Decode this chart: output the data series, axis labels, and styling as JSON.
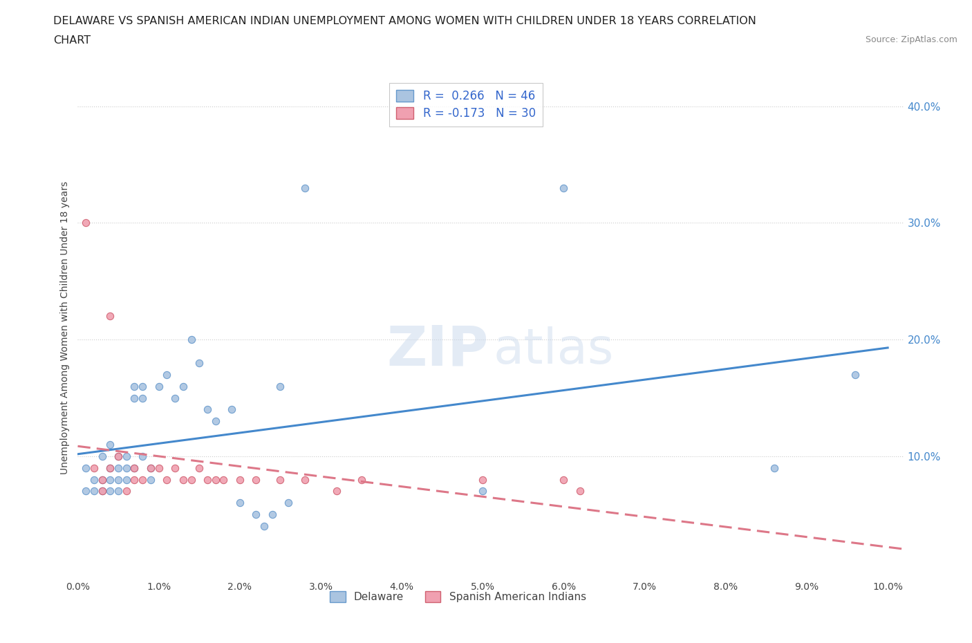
{
  "title_line1": "DELAWARE VS SPANISH AMERICAN INDIAN UNEMPLOYMENT AMONG WOMEN WITH CHILDREN UNDER 18 YEARS CORRELATION",
  "title_line2": "CHART",
  "source_text": "Source: ZipAtlas.com",
  "ylabel": "Unemployment Among Women with Children Under 18 years",
  "xlim": [
    0.0,
    0.102
  ],
  "ylim": [
    -0.005,
    0.425
  ],
  "xtick_vals": [
    0.0,
    0.01,
    0.02,
    0.03,
    0.04,
    0.05,
    0.06,
    0.07,
    0.08,
    0.09,
    0.1
  ],
  "xtick_labels": [
    "0.0%",
    "1.0%",
    "2.0%",
    "3.0%",
    "4.0%",
    "5.0%",
    "6.0%",
    "7.0%",
    "8.0%",
    "9.0%",
    "10.0%"
  ],
  "ytick_vals": [
    0.1,
    0.2,
    0.3,
    0.4
  ],
  "ytick_labels": [
    "10.0%",
    "20.0%",
    "30.0%",
    "40.0%"
  ],
  "delaware_color": "#aac4e0",
  "delaware_edge_color": "#6699cc",
  "spanish_color": "#f0a0b0",
  "spanish_edge_color": "#d06070",
  "delaware_line_color": "#4488cc",
  "spanish_line_color": "#dd7788",
  "R1": 0.266,
  "N1": 46,
  "R2": -0.173,
  "N2": 30,
  "legend_label1": "Delaware",
  "legend_label2": "Spanish American Indians",
  "stat_text_color": "#3366cc",
  "title_color": "#222222",
  "background_color": "#ffffff",
  "grid_color": "#cccccc",
  "axis_color": "#444444",
  "delaware_x": [
    0.001,
    0.001,
    0.002,
    0.002,
    0.003,
    0.003,
    0.003,
    0.004,
    0.004,
    0.004,
    0.004,
    0.005,
    0.005,
    0.005,
    0.005,
    0.006,
    0.006,
    0.006,
    0.007,
    0.007,
    0.007,
    0.008,
    0.008,
    0.008,
    0.009,
    0.009,
    0.01,
    0.011,
    0.012,
    0.013,
    0.014,
    0.015,
    0.016,
    0.017,
    0.019,
    0.02,
    0.022,
    0.023,
    0.024,
    0.025,
    0.026,
    0.028,
    0.05,
    0.06,
    0.086,
    0.096
  ],
  "delaware_y": [
    0.07,
    0.09,
    0.07,
    0.08,
    0.08,
    0.07,
    0.1,
    0.08,
    0.07,
    0.09,
    0.11,
    0.09,
    0.08,
    0.07,
    0.1,
    0.08,
    0.09,
    0.1,
    0.09,
    0.15,
    0.16,
    0.15,
    0.16,
    0.1,
    0.08,
    0.09,
    0.16,
    0.17,
    0.15,
    0.16,
    0.2,
    0.18,
    0.14,
    0.13,
    0.14,
    0.06,
    0.05,
    0.04,
    0.05,
    0.16,
    0.06,
    0.33,
    0.07,
    0.33,
    0.09,
    0.17
  ],
  "spanish_x": [
    0.001,
    0.002,
    0.003,
    0.003,
    0.004,
    0.004,
    0.005,
    0.006,
    0.007,
    0.007,
    0.008,
    0.009,
    0.01,
    0.011,
    0.012,
    0.013,
    0.014,
    0.015,
    0.016,
    0.017,
    0.018,
    0.02,
    0.022,
    0.025,
    0.028,
    0.032,
    0.035,
    0.05,
    0.06,
    0.062
  ],
  "spanish_y": [
    0.3,
    0.09,
    0.07,
    0.08,
    0.09,
    0.22,
    0.1,
    0.07,
    0.08,
    0.09,
    0.08,
    0.09,
    0.09,
    0.08,
    0.09,
    0.08,
    0.08,
    0.09,
    0.08,
    0.08,
    0.08,
    0.08,
    0.08,
    0.08,
    0.08,
    0.07,
    0.08,
    0.08,
    0.08,
    0.07
  ]
}
